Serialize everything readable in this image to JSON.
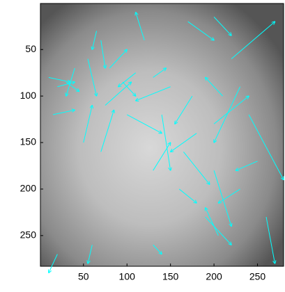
{
  "chart_data": {
    "type": "quiver",
    "color": "#00ffff",
    "y_reversed": true,
    "xlim": [
      0.5,
      280
    ],
    "ylim": [
      0.5,
      283
    ],
    "xticks": [
      50,
      100,
      150,
      200,
      250
    ],
    "yticks": [
      50,
      100,
      150,
      200,
      250
    ],
    "x": [
      10,
      20,
      30,
      15,
      40,
      55,
      70,
      65,
      80,
      95,
      110,
      130,
      75,
      50,
      70,
      100,
      120,
      140,
      150,
      175,
      180,
      165,
      200,
      210,
      220,
      230,
      240,
      250,
      200,
      160,
      190,
      205,
      170,
      200,
      130,
      20,
      60,
      260,
      130,
      230
    ],
    "y": [
      80,
      90,
      85,
      120,
      70,
      60,
      40,
      30,
      70,
      85,
      75,
      80,
      110,
      150,
      160,
      120,
      40,
      120,
      90,
      100,
      140,
      160,
      130,
      100,
      60,
      90,
      120,
      170,
      180,
      200,
      230,
      250,
      20,
      15,
      180,
      270,
      260,
      230,
      260,
      200
    ],
    "u": [
      25,
      20,
      15,
      25,
      -10,
      10,
      5,
      -5,
      20,
      15,
      -20,
      15,
      30,
      10,
      15,
      40,
      -10,
      10,
      -40,
      -20,
      -30,
      30,
      40,
      -20,
      50,
      -30,
      40,
      -25,
      20,
      20,
      30,
      -15,
      30,
      20,
      20,
      -10,
      -5,
      10,
      10,
      -25
    ],
    "v": [
      5,
      -5,
      10,
      -5,
      30,
      40,
      30,
      20,
      -20,
      15,
      15,
      -10,
      -25,
      -40,
      -45,
      20,
      -30,
      60,
      15,
      30,
      20,
      35,
      -30,
      -20,
      -40,
      60,
      70,
      10,
      60,
      15,
      30,
      -30,
      20,
      20,
      -30,
      20,
      20,
      50,
      10,
      15
    ]
  }
}
